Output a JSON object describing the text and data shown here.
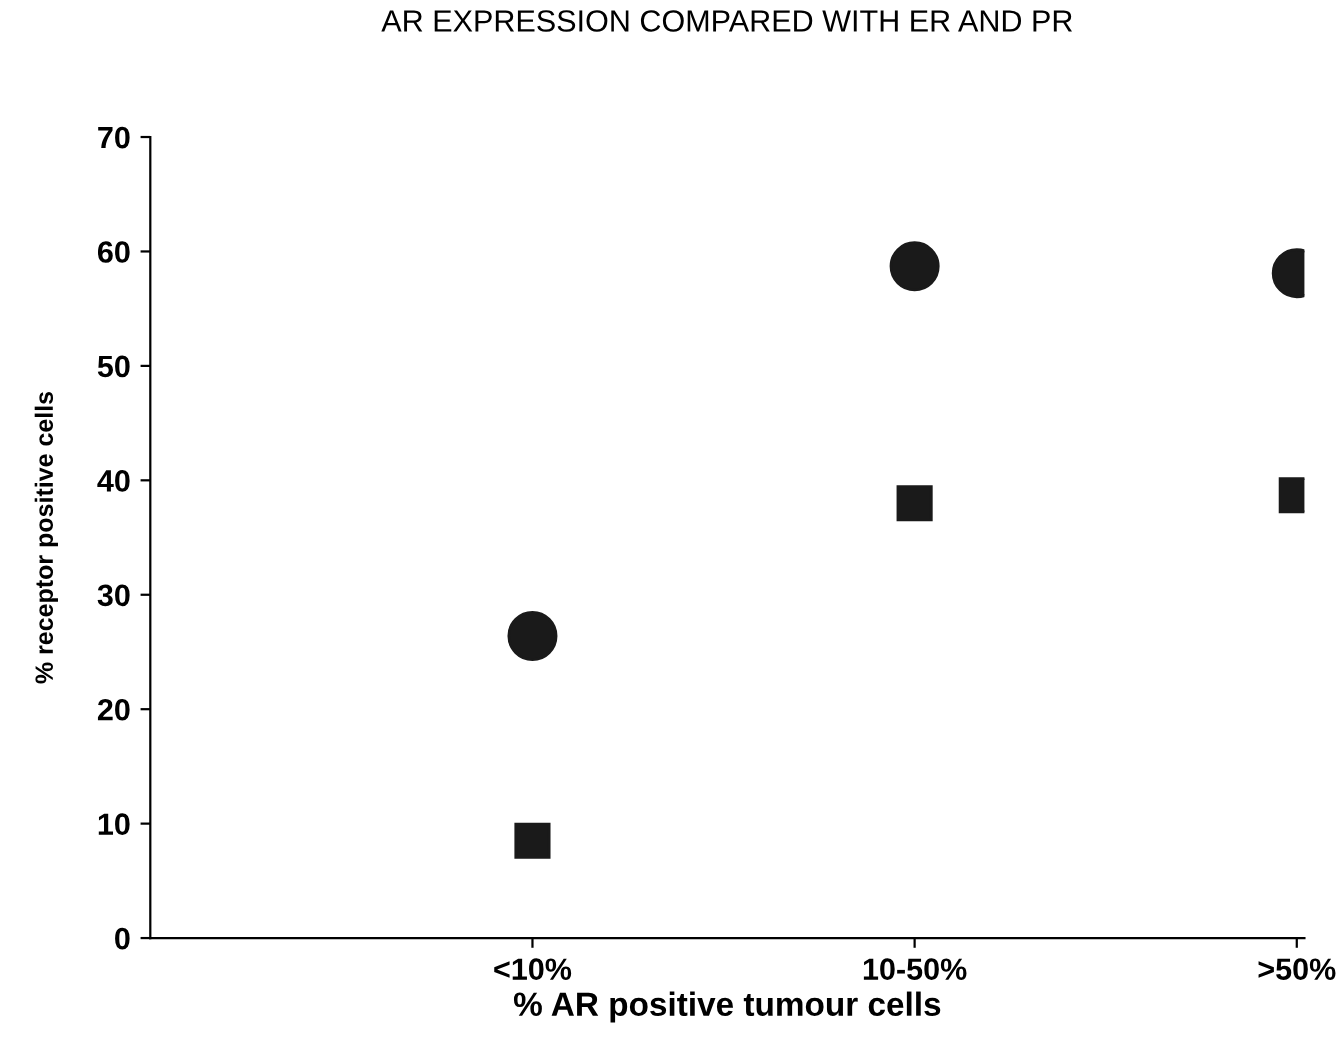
{
  "chart_data": {
    "type": "scatter",
    "title": "AR EXPRESSION COMPARED WITH ER AND PR",
    "xlabel": "% AR positive tumour cells",
    "ylabel": "% receptor positive cells",
    "categories": [
      "<10%",
      "10-50%",
      ">50%"
    ],
    "series": [
      {
        "color": "#1a1a1a",
        "marker": "circle",
        "values": [
          26.4,
          58.7,
          58.1
        ]
      },
      {
        "color": "#1a1a1a",
        "marker": "square",
        "values": [
          8.5,
          38.0,
          38.7
        ]
      }
    ],
    "ylim": [
      0,
      70
    ],
    "yticks": [
      0,
      10,
      20,
      30,
      40,
      50,
      60,
      70
    ],
    "grid": false,
    "legend": false
  }
}
